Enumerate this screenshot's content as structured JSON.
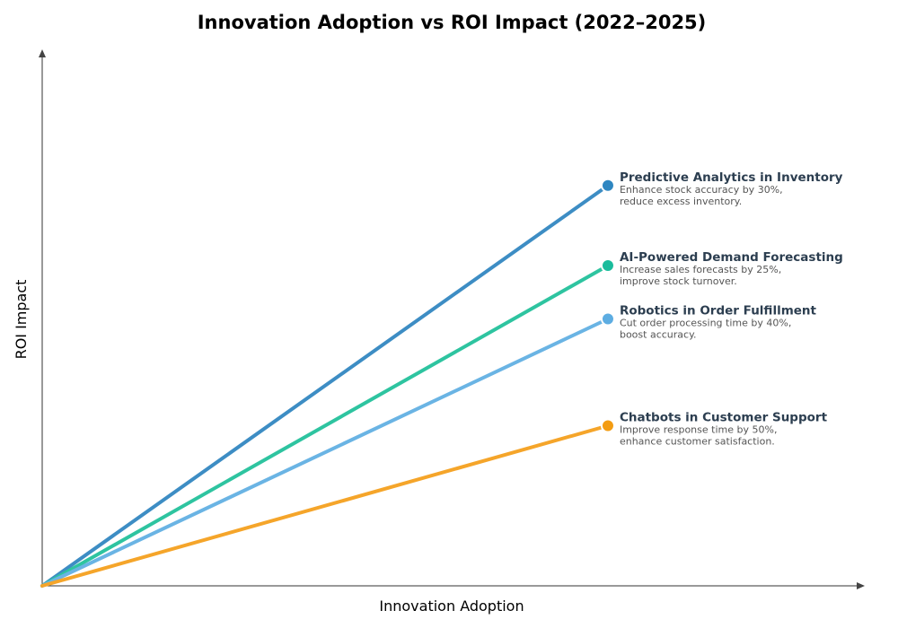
{
  "chart_data": {
    "type": "line",
    "title": "Innovation Adoption vs ROI Impact (2022–2025)",
    "xlabel": "Innovation Adoption",
    "ylabel": "ROI Impact",
    "xlim": [
      0,
      100
    ],
    "ylim": [
      0,
      100
    ],
    "grid": false,
    "ticks_shown": false,
    "series": [
      {
        "name": "Predictive Analytics in Inventory",
        "description": [
          "Enhance stock accuracy by 30%,",
          "reduce excess inventory."
        ],
        "points": [
          [
            0,
            0
          ],
          [
            69,
            75
          ]
        ],
        "color": "#2e86c1",
        "line_color": "#3d8dc4"
      },
      {
        "name": "AI-Powered Demand Forecasting",
        "description": [
          "Increase sales forecasts by 25%,",
          "improve stock turnover."
        ],
        "points": [
          [
            0,
            0
          ],
          [
            69,
            60
          ]
        ],
        "color": "#1abc9c",
        "line_color": "#2ec4a0"
      },
      {
        "name": "Robotics in Order Fulfillment",
        "description": [
          "Cut order processing time by 40%,",
          "boost accuracy."
        ],
        "points": [
          [
            0,
            0
          ],
          [
            69,
            50
          ]
        ],
        "color": "#5dade2",
        "line_color": "#6ab4e4"
      },
      {
        "name": "Chatbots in Customer Support",
        "description": [
          "Improve response time by 50%,",
          "enhance customer satisfaction."
        ],
        "points": [
          [
            0,
            0
          ],
          [
            69,
            30
          ]
        ],
        "color": "#f39c12",
        "line_color": "#f5a52a"
      }
    ]
  }
}
